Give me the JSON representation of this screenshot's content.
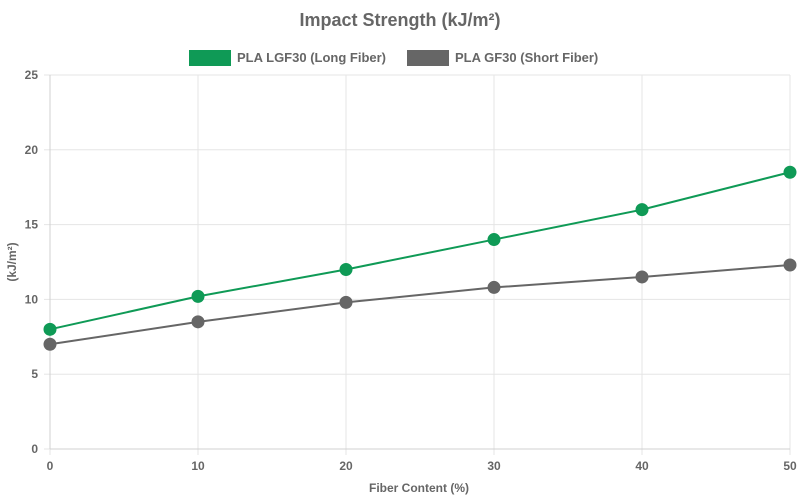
{
  "chart_data": {
    "type": "line",
    "title": "Impact Strength (kJ/m²)",
    "xlabel": "Fiber Content (%)",
    "ylabel": "(kJ/m²)",
    "x": [
      0,
      10,
      20,
      30,
      40,
      50
    ],
    "x_ticks": [
      "0",
      "10",
      "20",
      "30",
      "40",
      "50"
    ],
    "y_ticks": [
      "0",
      "5",
      "10",
      "15",
      "20",
      "25"
    ],
    "xlim": [
      0,
      50
    ],
    "ylim": [
      0,
      25
    ],
    "grid": true,
    "legend_position": "top",
    "series": [
      {
        "name": "PLA LGF30 (Long Fiber)",
        "color": "#0f9a56",
        "values": [
          8.0,
          10.2,
          12.0,
          14.0,
          16.0,
          18.5
        ]
      },
      {
        "name": "PLA GF30 (Short Fiber)",
        "color": "#666666",
        "values": [
          7.0,
          8.5,
          9.8,
          10.8,
          11.5,
          12.3
        ]
      }
    ]
  }
}
